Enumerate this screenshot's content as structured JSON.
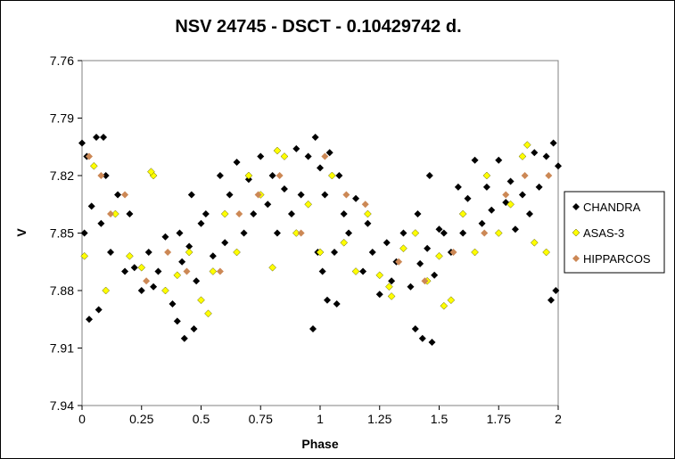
{
  "chart_data": {
    "type": "scatter",
    "title": "NSV 24745 - DSCT - 0.10429742 d.",
    "xlabel": "Phase",
    "ylabel": "V",
    "xlim": [
      0,
      2
    ],
    "ylim": [
      7.94,
      7.76
    ],
    "y_inverted": true,
    "grid": false,
    "legend_position": "right",
    "x_ticks": [
      "0",
      "0.25",
      "0.5",
      "0.75",
      "1",
      "1.25",
      "1.5",
      "1.75",
      "2"
    ],
    "y_ticks": [
      "7.76",
      "7.79",
      "7.82",
      "7.85",
      "7.88",
      "7.91",
      "7.94"
    ],
    "series": [
      {
        "name": "CHANDRA",
        "color": "#000000",
        "marker": "diamond",
        "x": [
          0.0,
          0.02,
          0.04,
          0.06,
          0.08,
          0.1,
          0.12,
          0.15,
          0.18,
          0.2,
          0.22,
          0.25,
          0.28,
          0.3,
          0.32,
          0.35,
          0.38,
          0.4,
          0.42,
          0.45,
          0.48,
          0.5,
          0.52,
          0.55,
          0.58,
          0.6,
          0.62,
          0.65,
          0.68,
          0.7,
          0.72,
          0.75,
          0.78,
          0.8,
          0.82,
          0.85,
          0.88,
          0.9,
          0.92,
          0.95,
          0.98,
          1.0,
          1.02,
          1.04,
          1.06,
          1.08,
          1.1,
          1.12,
          1.15,
          1.18,
          1.2,
          1.22,
          1.25,
          1.28,
          1.3,
          1.32,
          1.35,
          1.38,
          1.4,
          1.42,
          1.45,
          1.48,
          1.5,
          1.52,
          1.55,
          1.58,
          1.6,
          1.62,
          1.65,
          1.68,
          1.7,
          1.72,
          1.75,
          1.78,
          1.8,
          1.82,
          1.85,
          1.88,
          1.9,
          1.92,
          1.95,
          1.98,
          2.0,
          0.03,
          0.07,
          0.43,
          0.47,
          0.97,
          1.03,
          1.07,
          1.43,
          1.47,
          1.97,
          0.01,
          0.09,
          0.41,
          0.46,
          0.99,
          1.01,
          1.41,
          1.46,
          1.99
        ],
        "y": [
          7.803,
          7.81,
          7.836,
          7.8,
          7.845,
          7.82,
          7.86,
          7.83,
          7.87,
          7.84,
          7.868,
          7.88,
          7.86,
          7.878,
          7.87,
          7.852,
          7.887,
          7.896,
          7.865,
          7.857,
          7.875,
          7.845,
          7.84,
          7.862,
          7.82,
          7.855,
          7.83,
          7.813,
          7.85,
          7.822,
          7.84,
          7.81,
          7.835,
          7.82,
          7.85,
          7.827,
          7.84,
          7.806,
          7.83,
          7.81,
          7.8,
          7.816,
          7.83,
          7.808,
          7.86,
          7.82,
          7.84,
          7.85,
          7.832,
          7.87,
          7.845,
          7.86,
          7.882,
          7.855,
          7.875,
          7.865,
          7.85,
          7.878,
          7.9,
          7.866,
          7.858,
          7.872,
          7.848,
          7.85,
          7.86,
          7.826,
          7.85,
          7.832,
          7.812,
          7.845,
          7.826,
          7.838,
          7.812,
          7.834,
          7.823,
          7.848,
          7.83,
          7.84,
          7.808,
          7.826,
          7.81,
          7.803,
          7.815,
          7.895,
          7.89,
          7.905,
          7.9,
          7.9,
          7.885,
          7.887,
          7.905,
          7.907,
          7.885,
          7.85,
          7.8,
          7.85,
          7.83,
          7.86,
          7.87,
          7.84,
          7.82,
          7.88
        ]
      },
      {
        "name": "ASAS-3",
        "color": "#ffff00",
        "marker": "diamond",
        "x": [
          0.01,
          0.05,
          0.1,
          0.14,
          0.2,
          0.25,
          0.3,
          0.35,
          0.4,
          0.45,
          0.5,
          0.55,
          0.6,
          0.65,
          0.7,
          0.75,
          0.8,
          0.85,
          0.9,
          0.95,
          1.0,
          1.05,
          1.1,
          1.15,
          1.2,
          1.25,
          1.3,
          1.35,
          1.4,
          1.45,
          1.5,
          1.55,
          1.6,
          1.65,
          1.7,
          1.75,
          1.8,
          1.85,
          1.9,
          1.95,
          0.29,
          0.53,
          0.82,
          1.29,
          1.52,
          1.87
        ],
        "y": [
          7.862,
          7.815,
          7.88,
          7.84,
          7.862,
          7.868,
          7.82,
          7.88,
          7.872,
          7.86,
          7.885,
          7.87,
          7.84,
          7.86,
          7.82,
          7.83,
          7.868,
          7.81,
          7.85,
          7.835,
          7.86,
          7.82,
          7.855,
          7.87,
          7.84,
          7.872,
          7.883,
          7.858,
          7.85,
          7.875,
          7.862,
          7.885,
          7.84,
          7.86,
          7.82,
          7.85,
          7.835,
          7.81,
          7.855,
          7.86,
          7.818,
          7.892,
          7.807,
          7.878,
          7.888,
          7.804
        ]
      },
      {
        "name": "HIPPARCOS",
        "color": "#cc8855",
        "marker": "diamond",
        "x": [
          0.03,
          0.08,
          0.12,
          0.18,
          0.27,
          0.36,
          0.44,
          0.58,
          0.66,
          0.74,
          0.83,
          0.92,
          1.02,
          1.11,
          1.19,
          1.33,
          1.44,
          1.56,
          1.69,
          1.78,
          1.86,
          1.96
        ],
        "y": [
          7.81,
          7.82,
          7.84,
          7.83,
          7.875,
          7.86,
          7.87,
          7.87,
          7.84,
          7.83,
          7.82,
          7.85,
          7.81,
          7.83,
          7.835,
          7.865,
          7.875,
          7.86,
          7.85,
          7.83,
          7.82,
          7.82
        ]
      }
    ]
  }
}
